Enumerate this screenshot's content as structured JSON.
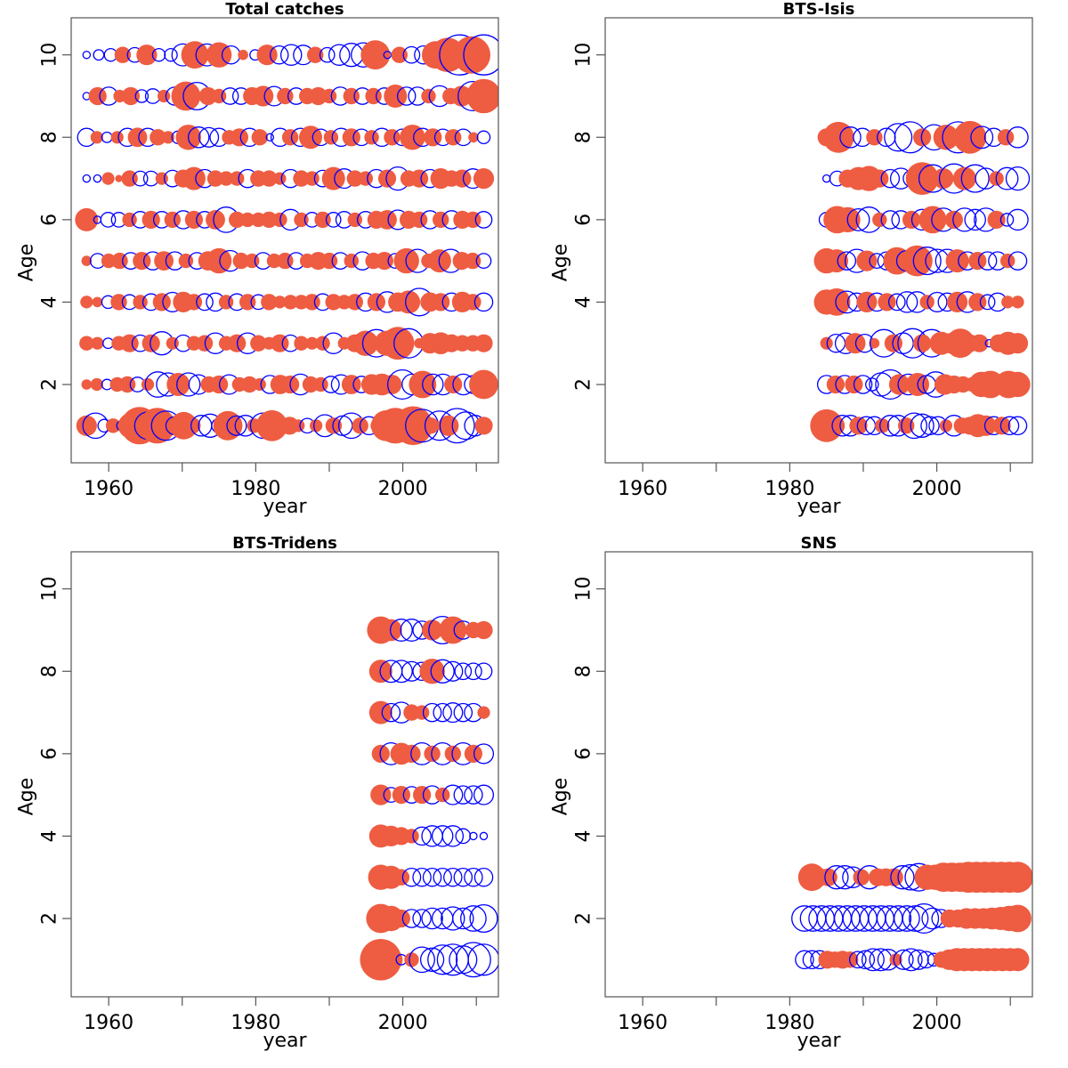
{
  "colors": {
    "positive": "#EE5C42",
    "negative": "#0000FF"
  },
  "chart_data": [
    {
      "type": "scatter",
      "subtype": "bubble",
      "title": "Total catches",
      "xlabel": "year",
      "ylabel": "Age",
      "xlim": [
        1954.9,
        2013.0
      ],
      "ylim": [
        0.1,
        10.9
      ],
      "xticks": [
        1960,
        1970,
        1980,
        1990,
        2000,
        2010
      ],
      "xtick_labels": [
        "1960",
        "",
        "1980",
        "",
        "2000",
        ""
      ],
      "yticks": [
        2,
        4,
        6,
        8,
        10
      ],
      "ytick_labels": [
        "2",
        "4",
        "6",
        "8",
        "10"
      ],
      "year_start": 1957,
      "ages": [
        1,
        2,
        3,
        4,
        5,
        6,
        7,
        8,
        9,
        10
      ],
      "residuals": {
        "1": [
          0.8,
          -1.2,
          -0.3,
          0.4,
          -0.2,
          1.2,
          2.6,
          -1.4,
          2.4,
          -1.6,
          -0.6,
          1.4,
          0.5,
          -0.8,
          -1.0,
          -0.4,
          1.6,
          -0.7,
          -0.8,
          0.4,
          -1.2,
          1.8,
          0.4,
          0.6,
          0.3,
          -0.4,
          0.3,
          -0.9,
          0.5,
          -0.7,
          -1.2,
          0.5,
          -0.6,
          0.4,
          1.8,
          2.4,
          0.6,
          2.8,
          -2.0,
          0.5,
          -1.6,
          0.8,
          -2.2,
          -1.4,
          -0.8,
          0.6
        ],
        "2": [
          0.2,
          0.3,
          -0.2,
          0.4,
          0.5,
          -0.4,
          0.3,
          -1.2,
          -1.0,
          1.0,
          -1.0,
          -0.7,
          0.5,
          0.6,
          -0.7,
          0.4,
          0.5,
          0.3,
          -0.6,
          0.7,
          0.6,
          -0.8,
          0.5,
          0.4,
          -0.5,
          -0.7,
          0.7,
          -0.5,
          0.8,
          0.9,
          0.7,
          -1.6,
          -0.8,
          1.4,
          -0.8,
          -0.8,
          0.6,
          -0.8,
          -0.6,
          1.6
        ],
        "3": [
          0.4,
          0.3,
          -0.2,
          0.4,
          0.6,
          -0.5,
          0.6,
          -1.0,
          0.3,
          -0.5,
          0.4,
          0.5,
          -0.8,
          0.4,
          0.6,
          -0.8,
          0.5,
          0.3,
          0.6,
          -0.5,
          0.4,
          0.3,
          0.4,
          -0.8,
          0.3,
          0.6,
          1.2,
          -1.4,
          1.2,
          2.0,
          -1.6,
          0.2,
          0.8,
          0.9,
          0.6,
          0.5,
          0.5,
          0.6
        ],
        "4": [
          0.3,
          0.2,
          -0.3,
          0.5,
          -0.4,
          0.4,
          -0.5,
          0.6,
          -0.7,
          0.8,
          0.5,
          -0.5,
          -0.6,
          0.4,
          -0.5,
          0.5,
          -0.4,
          0.5,
          0.3,
          0.4,
          0.4,
          0.5,
          -0.5,
          0.5,
          0.4,
          0.5,
          -0.6,
          0.6,
          -0.8,
          0.7,
          1.0,
          -1.4,
          0.7,
          0.6,
          -0.6,
          0.8,
          0.5,
          -0.6
        ],
        "5": [
          0.2,
          -0.4,
          0.4,
          0.5,
          -0.5,
          0.6,
          -0.6,
          0.7,
          -0.6,
          0.4,
          -0.5,
          0.7,
          1.2,
          -0.8,
          0.5,
          0.4,
          -0.5,
          0.4,
          0.5,
          -0.5,
          0.4,
          0.6,
          0.5,
          -0.5,
          0.4,
          -0.6,
          0.5,
          0.6,
          -0.4,
          1.2,
          -1.0,
          0.4,
          1.0,
          -1.0,
          0.6,
          0.5,
          -0.4
        ],
        "6": [
          1.0,
          -0.1,
          -0.4,
          -0.4,
          0.4,
          -0.5,
          0.6,
          -0.5,
          0.5,
          -0.6,
          0.6,
          -0.5,
          0.7,
          -1.2,
          0.5,
          0.4,
          0.4,
          0.5,
          0.4,
          -0.8,
          0.4,
          -0.4,
          0.5,
          -0.4,
          -0.5,
          0.4,
          -0.5,
          0.6,
          0.7,
          -0.7,
          0.6,
          0.5,
          -0.6,
          0.5,
          -0.6,
          0.6,
          0.5,
          -0.5
        ],
        "7": [
          -0.1,
          -0.1,
          0.3,
          0.1,
          0.5,
          -0.4,
          -0.4,
          0.3,
          -0.5,
          0.6,
          1.0,
          -0.6,
          0.5,
          0.4,
          0.4,
          -0.6,
          0.5,
          0.5,
          0.3,
          -0.6,
          0.5,
          0.4,
          -0.5,
          1.0,
          -0.7,
          0.5,
          0.4,
          -0.6,
          0.6,
          -1.0,
          0.5,
          0.6,
          -0.6,
          0.8,
          0.5,
          0.6,
          -0.7,
          0.8
        ],
        "8": [
          -0.6,
          0.3,
          -0.2,
          0.3,
          -0.6,
          0.7,
          -0.6,
          0.5,
          0.3,
          -0.3,
          1.2,
          -0.8,
          -0.7,
          -0.6,
          0.4,
          0.6,
          -0.6,
          0.5,
          -0.1,
          -0.6,
          0.5,
          -0.6,
          1.0,
          -0.5,
          0.4,
          -0.6,
          0.6,
          -0.5,
          0.4,
          -0.6,
          0.5,
          -0.5,
          1.2,
          -0.6,
          0.6,
          -0.5,
          0.5,
          -0.5,
          0.2,
          -0.3
        ],
        "9": [
          -0.1,
          0.6,
          -0.6,
          0.3,
          0.6,
          -0.3,
          -0.4,
          0.3,
          -0.6,
          1.6,
          -1.4,
          0.6,
          0.4,
          -0.5,
          -0.5,
          0.6,
          0.8,
          -0.7,
          0.5,
          -0.5,
          0.5,
          0.6,
          0.4,
          -0.6,
          0.5,
          -0.5,
          0.5,
          -0.5,
          1.0,
          -0.6,
          -0.6,
          0.4,
          -0.8,
          0.5,
          0.8,
          -1.6,
          2.2
        ],
        "10": [
          -0.1,
          -0.2,
          -0.3,
          0.5,
          -0.4,
          0.8,
          -0.3,
          -0.3,
          -0.9,
          1.4,
          -0.9,
          1.2,
          -0.6,
          0.2,
          -0.2,
          0.8,
          -0.6,
          -0.8,
          -0.7,
          0.5,
          -0.4,
          -0.8,
          -1.0,
          -1.1,
          1.6,
          -0.1,
          0.5,
          -0.5,
          -0.6,
          1.4,
          2.2,
          -3.0,
          2.6,
          -3.0
        ]
      },
      "age_years": {
        "1": [
          1957,
          2011
        ],
        "2": [
          1957,
          2011
        ],
        "3": [
          1957,
          2011
        ],
        "4": [
          1957,
          2011
        ],
        "5": [
          1957,
          2011
        ],
        "6": [
          1957,
          2011
        ],
        "7": [
          1957,
          2011
        ],
        "8": [
          1957,
          2011
        ],
        "9": [
          1957,
          2011
        ],
        "10": [
          1957,
          2011
        ]
      }
    },
    {
      "type": "scatter",
      "subtype": "bubble",
      "title": "BTS-Isis",
      "xlabel": "year",
      "ylabel": "Age",
      "xlim": [
        1954.9,
        2013.0
      ],
      "ylim": [
        0.1,
        10.9
      ],
      "xticks": [
        1960,
        1970,
        1980,
        1990,
        2000,
        2010
      ],
      "xtick_labels": [
        "1960",
        "",
        "1980",
        "",
        "2000",
        ""
      ],
      "yticks": [
        2,
        4,
        6,
        8,
        10
      ],
      "ytick_labels": [
        "2",
        "4",
        "6",
        "8",
        "10"
      ],
      "ages": [
        1,
        2,
        3,
        4,
        5,
        6,
        7,
        8
      ],
      "residuals": {
        "1": [
          2.0,
          0.8,
          -0.8,
          -0.8,
          0.6,
          -0.6,
          -0.6,
          0.4,
          -0.8,
          -0.8,
          0.5,
          -1.2,
          -1.0,
          -0.6,
          -0.6,
          0.3,
          -0.8,
          0.5,
          0.6,
          1.0,
          0.8,
          -0.6,
          0.6,
          -0.6,
          -0.6
        ],
        "2": [
          -0.6,
          0.6,
          -0.6,
          0.6,
          -0.6,
          -0.3,
          -1.0,
          -1.6,
          0.8,
          -0.8,
          1.0,
          -0.6,
          -1.2,
          0.8,
          0.6,
          0.5,
          0.4,
          1.2,
          1.4,
          0.8,
          1.4,
          1.2
        ],
        "3": [
          0.3,
          -0.6,
          -0.8,
          0.8,
          -0.6,
          0.2,
          -1.4,
          0.6,
          -0.8,
          -1.6,
          0.6,
          -1.4,
          1.0,
          0.8,
          1.6,
          0.6,
          0.6,
          -0.1,
          0.6,
          1.0,
          0.8
        ],
        "4": [
          1.2,
          1.4,
          -0.9,
          -0.6,
          0.8,
          -0.6,
          0.6,
          -0.5,
          -0.8,
          -0.8,
          0.4,
          -0.7,
          -0.6,
          0.8,
          -0.8,
          0.6,
          -0.4,
          -0.6,
          0.3,
          0.3
        ],
        "5": [
          1.2,
          1.0,
          -0.6,
          -1.0,
          0.8,
          -0.4,
          -0.6,
          1.4,
          -0.8,
          1.8,
          -1.4,
          -1.0,
          -1.0,
          1.0,
          -0.6,
          0.6,
          -0.6,
          -0.6,
          0.4,
          -0.6
        ],
        "6": [
          -0.4,
          1.4,
          1.2,
          -0.9,
          -1.2,
          0.4,
          -0.6,
          -0.6,
          0.6,
          -0.8,
          1.4,
          -1.0,
          0.6,
          -1.0,
          -0.8,
          -1.0,
          0.6,
          -0.3,
          -0.8
        ],
        "7": [
          -0.1,
          -0.4,
          0.6,
          1.0,
          1.2,
          0.6,
          -0.6,
          -0.8,
          -0.5,
          2.0,
          -1.4,
          0.8,
          -1.6,
          1.0,
          -1.4,
          -0.8,
          0.4,
          -0.9,
          -1.0
        ],
        "8": [
          0.6,
          1.8,
          -0.8,
          -0.6,
          0.5,
          -0.6,
          -1.4,
          -1.8,
          0.6,
          -1.2,
          1.2,
          -1.8,
          2.0,
          -0.9,
          -0.6,
          0.5,
          -0.8
        ]
      },
      "age_years": {
        "1": [
          1985,
          2011
        ],
        "2": [
          1985,
          2011
        ],
        "3": [
          1985,
          2011
        ],
        "4": [
          1985,
          2011
        ],
        "5": [
          1985,
          2011
        ],
        "6": [
          1985,
          2011
        ],
        "7": [
          1985,
          2011
        ],
        "8": [
          1985,
          2011
        ]
      }
    },
    {
      "type": "scatter",
      "subtype": "bubble",
      "title": "BTS-Tridens",
      "xlabel": "year",
      "ylabel": "Age",
      "xlim": [
        1954.9,
        2013.0
      ],
      "ylim": [
        0.1,
        10.9
      ],
      "xticks": [
        1960,
        1970,
        1980,
        1990,
        2000,
        2010
      ],
      "xtick_labels": [
        "1960",
        "",
        "1980",
        "",
        "2000",
        ""
      ],
      "yticks": [
        2,
        4,
        6,
        8,
        10
      ],
      "ytick_labels": [
        "2",
        "4",
        "6",
        "8",
        "10"
      ],
      "ages": [
        1,
        2,
        3,
        4,
        5,
        6,
        7,
        8,
        9
      ],
      "residuals": {
        "1": [
          3.2,
          1.0,
          -0.2,
          0.4,
          -1.2,
          -1.0,
          -1.6,
          -1.8,
          -1.4,
          -2.2,
          -1.8
        ],
        "2": [
          1.6,
          1.2,
          0.6,
          -0.6,
          -0.6,
          -0.8,
          -0.8,
          -1.0,
          -0.8,
          -1.2,
          -1.4
        ],
        "3": [
          1.2,
          1.0,
          0.5,
          -0.6,
          -0.6,
          -0.6,
          -0.6,
          -0.6,
          -0.6,
          -0.6,
          -0.6
        ],
        "4": [
          1.0,
          0.8,
          0.6,
          0.4,
          -0.6,
          -0.8,
          -0.8,
          -0.8,
          -0.4,
          -0.1,
          -0.1
        ],
        "5": [
          0.8,
          -0.4,
          0.6,
          -0.5,
          0.6,
          -0.6,
          0.4,
          -0.7,
          -0.6,
          -0.6,
          -0.7
        ],
        "6": [
          0.6,
          -0.9,
          0.9,
          0.6,
          -0.9,
          0.5,
          -0.9,
          0.5,
          -0.9,
          0.6,
          -0.7
        ],
        "7": [
          1.0,
          -0.6,
          -0.8,
          0.5,
          0.4,
          -0.6,
          -0.6,
          -0.7,
          -0.6,
          -0.6,
          0.3
        ],
        "8": [
          1.0,
          -0.9,
          -0.9,
          -0.7,
          -0.6,
          1.2,
          -1.0,
          -0.7,
          -0.5,
          -0.5,
          -0.5
        ],
        "9": [
          1.4,
          0.9,
          -0.9,
          -0.9,
          -0.6,
          0.8,
          -1.4,
          1.4,
          -0.6,
          0.5,
          0.6
        ]
      },
      "age_years": {
        "1": [
          1997,
          2011
        ],
        "2": [
          1997,
          2011
        ],
        "3": [
          1997,
          2011
        ],
        "4": [
          1997,
          2011
        ],
        "5": [
          1997,
          2011
        ],
        "6": [
          1997,
          2011
        ],
        "7": [
          1997,
          2011
        ],
        "8": [
          1997,
          2011
        ],
        "9": [
          1997,
          2011
        ]
      }
    },
    {
      "type": "scatter",
      "subtype": "bubble",
      "title": "SNS",
      "xlabel": "year",
      "ylabel": "Age",
      "xlim": [
        1954.9,
        2013.0
      ],
      "ylim": [
        0.1,
        10.9
      ],
      "xticks": [
        1960,
        1970,
        1980,
        1990,
        2000,
        2010
      ],
      "xtick_labels": [
        "1960",
        "",
        "1980",
        "",
        "2000",
        ""
      ],
      "yticks": [
        2,
        4,
        6,
        8,
        10
      ],
      "ytick_labels": [
        "2",
        "4",
        "6",
        "8",
        "10"
      ],
      "ages": [
        1,
        2,
        3
      ],
      "residuals": {
        "1": [
          -0.6,
          -0.6,
          -0.6,
          0.6,
          0.5,
          0.6,
          0.5,
          -0.5,
          -0.6,
          -0.9,
          -0.9,
          -0.8,
          0.3,
          -0.7,
          -0.9,
          -0.7,
          -0.5,
          -0.3,
          0.5,
          0.8,
          1.0,
          1.0,
          1.0,
          1.0,
          1.0,
          1.0,
          1.0,
          1.0,
          1.0
        ],
        "2": [
          -1.2,
          -1.2,
          -1.2,
          -1.2,
          -1.2,
          -1.2,
          -1.2,
          -1.2,
          -1.2,
          -1.2,
          -1.2,
          -1.2,
          -1.2,
          -1.2,
          -1.6,
          -0.8,
          -0.6,
          0.6,
          0.6,
          0.8,
          0.8,
          0.8,
          0.9,
          1.0,
          1.2,
          1.4
        ],
        "3": [
          1.4,
          0.6,
          0.6,
          -1.0,
          -1.0,
          -0.8,
          0.5,
          -1.0,
          0.6,
          0.6,
          0.6,
          -1.0,
          -1.2,
          -1.4,
          1.2,
          1.2,
          1.6,
          1.6,
          1.6,
          1.8,
          1.8,
          1.8,
          1.8,
          1.8,
          1.8,
          1.8
        ]
      },
      "age_years": {
        "1": [
          1982,
          2011
        ],
        "2": [
          1982,
          2011
        ],
        "3": [
          1983,
          2011
        ]
      }
    }
  ]
}
